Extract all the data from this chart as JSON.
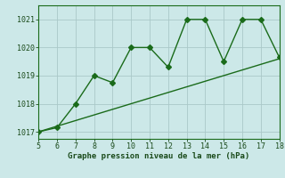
{
  "x": [
    5,
    6,
    7,
    8,
    9,
    10,
    11,
    12,
    13,
    14,
    15,
    16,
    17,
    18
  ],
  "y": [
    1017.0,
    1017.15,
    1018.0,
    1019.0,
    1018.75,
    1020.0,
    1020.0,
    1019.3,
    1021.0,
    1021.0,
    1019.5,
    1021.0,
    1021.0,
    1019.65
  ],
  "trend_x": [
    5,
    18
  ],
  "trend_y": [
    1017.0,
    1019.6
  ],
  "xlim": [
    5,
    18
  ],
  "ylim": [
    1016.75,
    1021.5
  ],
  "xticks": [
    5,
    6,
    7,
    8,
    9,
    10,
    11,
    12,
    13,
    14,
    15,
    16,
    17,
    18
  ],
  "yticks": [
    1017,
    1018,
    1019,
    1020,
    1021
  ],
  "line_color": "#1a6b1a",
  "bg_color": "#cce8e8",
  "grid_color": "#aac8c8",
  "xlabel": "Graphe pression niveau de la mer (hPa)",
  "xlabel_color": "#1a4a1a",
  "tick_color": "#1a4a1a",
  "markersize": 3,
  "linewidth": 1.0,
  "tick_fontsize": 6.0,
  "xlabel_fontsize": 6.5
}
